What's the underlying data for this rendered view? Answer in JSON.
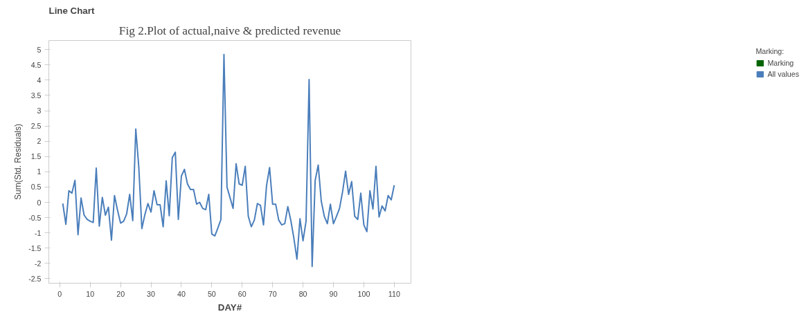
{
  "chart_data": {
    "type": "line",
    "title": "Line Chart",
    "annotations": [
      "Fig 2.Plot of actual,naive & predicted revenue"
    ],
    "xlabel": "DAY#",
    "ylabel": "Sum(Std. Residuals)",
    "legend_title": "Marking:",
    "legend": "top right",
    "x": [
      1,
      2,
      3,
      4,
      5,
      6,
      7,
      8,
      9,
      10,
      11,
      12,
      13,
      14,
      15,
      16,
      17,
      18,
      19,
      20,
      21,
      22,
      23,
      24,
      25,
      26,
      27,
      28,
      29,
      30,
      31,
      32,
      33,
      34,
      35,
      36,
      37,
      38,
      39,
      40,
      41,
      42,
      43,
      44,
      45,
      46,
      47,
      48,
      49,
      50,
      51,
      52,
      53,
      54,
      55,
      56,
      57,
      58,
      59,
      60,
      61,
      62,
      63,
      64,
      65,
      66,
      67,
      68,
      69,
      70,
      71,
      72,
      73,
      74,
      75,
      76,
      77,
      78,
      79,
      80,
      81,
      82,
      83,
      84,
      85,
      86,
      87,
      88,
      89,
      90,
      91,
      92,
      93,
      94,
      95,
      96,
      97,
      98,
      99,
      100,
      101,
      102,
      103,
      104,
      105,
      106,
      107,
      108,
      109,
      110
    ],
    "series": [
      {
        "name": "Marking",
        "color": "#006400",
        "values": [
          null,
          null,
          null,
          null,
          null,
          null,
          null,
          null,
          null,
          null,
          null,
          null,
          null,
          null,
          null,
          null,
          null,
          null,
          null,
          null,
          null,
          null,
          null,
          null,
          null,
          null,
          null,
          null,
          null,
          null,
          null,
          null,
          null,
          null,
          null,
          null,
          null,
          null,
          null,
          null,
          null,
          null,
          null,
          null,
          null,
          null,
          null,
          null,
          null,
          null,
          null,
          null,
          null,
          null,
          null,
          null,
          null,
          null,
          null,
          null,
          null,
          null,
          null,
          null,
          null,
          null,
          null,
          null,
          null,
          null,
          null,
          null,
          null,
          null,
          null,
          null,
          null,
          null,
          null,
          null,
          null,
          null,
          null,
          null,
          null,
          null,
          null,
          null,
          null,
          null,
          null,
          null,
          null,
          null,
          null,
          null,
          null,
          null,
          null,
          null,
          null,
          null,
          null,
          null,
          null,
          null,
          null,
          null,
          null,
          null
        ]
      },
      {
        "name": "All values",
        "color": "#4a7ebb",
        "values": [
          -0.04,
          -0.72,
          0.38,
          0.3,
          0.72,
          -1.06,
          0.14,
          -0.42,
          -0.56,
          -0.62,
          -0.66,
          1.12,
          -0.78,
          0.16,
          -0.42,
          -0.16,
          -1.24,
          0.22,
          -0.26,
          -0.68,
          -0.62,
          -0.38,
          0.26,
          -0.6,
          2.4,
          1.14,
          -0.86,
          -0.4,
          -0.04,
          -0.32,
          0.38,
          -0.08,
          -0.08,
          -0.8,
          0.7,
          -0.44,
          1.46,
          1.64,
          -0.56,
          0.86,
          1.08,
          0.6,
          0.42,
          0.42,
          -0.06,
          0.0,
          -0.2,
          -0.24,
          0.26,
          -1.04,
          -1.1,
          -0.84,
          -0.56,
          4.84,
          0.5,
          0.15,
          -0.2,
          1.26,
          0.6,
          0.56,
          1.18,
          -0.46,
          -0.8,
          -0.58,
          -0.04,
          -0.1,
          -0.74,
          0.54,
          1.14,
          -0.06,
          -0.06,
          -0.58,
          -0.74,
          -0.7,
          -0.14,
          -0.6,
          -1.18,
          -1.86,
          -0.54,
          -1.26,
          -0.62,
          4.02,
          -2.1,
          0.72,
          1.22,
          0.04,
          -0.46,
          -0.7,
          -0.06,
          -0.7,
          -0.46,
          -0.2,
          0.34,
          1.02,
          0.26,
          0.68,
          -0.46,
          -0.56,
          0.3,
          -0.74,
          -0.96,
          0.38,
          -0.22,
          1.18,
          -0.48,
          -0.12,
          -0.28,
          0.22,
          0.08,
          0.56
        ]
      }
    ],
    "xlim": [
      -3.6,
      115.5
    ],
    "xticks": [
      0,
      10,
      20,
      30,
      40,
      50,
      60,
      70,
      80,
      90,
      100,
      110
    ],
    "ylim": [
      -2.65,
      5.3
    ],
    "yticks": [
      -2.5,
      -2,
      -1.5,
      -1,
      -0.5,
      0,
      0.5,
      1,
      1.5,
      2,
      2.5,
      3,
      3.5,
      4,
      4.5,
      5
    ]
  }
}
